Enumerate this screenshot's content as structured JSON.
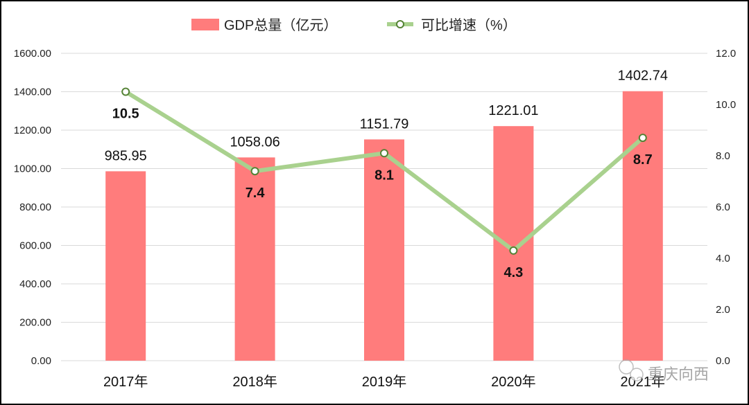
{
  "chart_data": {
    "type": "bar+line",
    "categories": [
      "2017年",
      "2018年",
      "2019年",
      "2020年",
      "2021年"
    ],
    "series": [
      {
        "name": "GDP总量（亿元）",
        "type": "bar",
        "axis": "left",
        "color": "#ff7c7c",
        "values": [
          985.95,
          1058.06,
          1151.79,
          1221.01,
          1402.74
        ],
        "labels": [
          "985.95",
          "1058.06",
          "1151.79",
          "1221.01",
          "1402.74"
        ]
      },
      {
        "name": "可比增速（%）",
        "type": "line",
        "axis": "right",
        "color": "#a9d18e",
        "marker_edge": "#548235",
        "values": [
          10.5,
          7.4,
          8.1,
          4.3,
          8.7
        ],
        "labels": [
          "10.5",
          "7.4",
          "8.1",
          "4.3",
          "8.7"
        ]
      }
    ],
    "y_left": {
      "range": [
        0,
        1600
      ],
      "ticks": [
        "0.00",
        "200.00",
        "400.00",
        "600.00",
        "800.00",
        "1000.00",
        "1200.00",
        "1400.00",
        "1600.00"
      ]
    },
    "y_right": {
      "range": [
        0,
        12
      ],
      "ticks": [
        "0.0",
        "2.0",
        "4.0",
        "6.0",
        "8.0",
        "10.0",
        "12.0"
      ]
    },
    "grid": true,
    "legend": "top-center"
  },
  "watermark": "重庆向西"
}
